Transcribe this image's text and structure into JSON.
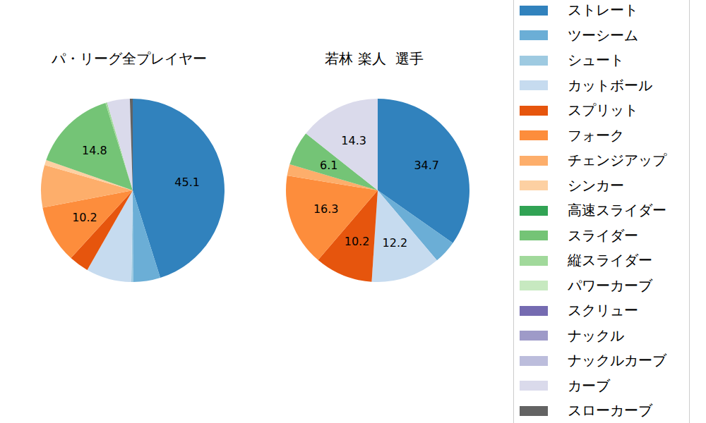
{
  "chart_data": {
    "type": "pie",
    "legend": "upper right",
    "categories": [
      "ストレート",
      "ツーシーム",
      "シュート",
      "カットボール",
      "スプリット",
      "フォーク",
      "チェンジアップ",
      "シンカー",
      "高速スライダー",
      "スライダー",
      "縦スライダー",
      "パワーカーブ",
      "スクリュー",
      "ナックル",
      "ナックルカーブ",
      "カーブ",
      "スローカーブ"
    ],
    "colors": [
      "#3182bd",
      "#6baed6",
      "#9ecae1",
      "#c6dbef",
      "#e6550d",
      "#fd8d3c",
      "#fdae6b",
      "#fdd0a2",
      "#31a354",
      "#74c476",
      "#a1d99b",
      "#c7e9c0",
      "#756bb1",
      "#9e9ac8",
      "#bcbddc",
      "#dadaeb",
      "#636363"
    ],
    "series": [
      {
        "name": "パ・リーグ全プレイヤー",
        "values": [
          45.1,
          4.8,
          0.3,
          8.0,
          3.5,
          10.2,
          7.5,
          0.9,
          0,
          14.8,
          0.3,
          0,
          0,
          0,
          0,
          4.0,
          0.5
        ],
        "value_labels": [
          "45.1",
          null,
          null,
          null,
          null,
          "10.2",
          null,
          null,
          null,
          "14.8",
          null,
          null,
          null,
          null,
          null,
          null,
          null
        ]
      },
      {
        "name": "若林 楽人  選手",
        "values": [
          34.7,
          4.1,
          0,
          12.2,
          10.2,
          16.3,
          2.0,
          0,
          0,
          6.1,
          0,
          0,
          0,
          0,
          0,
          14.3,
          0
        ],
        "value_labels": [
          "34.7",
          null,
          null,
          "12.2",
          "10.2",
          "16.3",
          null,
          null,
          null,
          "6.1",
          null,
          null,
          null,
          null,
          null,
          "14.3",
          null
        ]
      }
    ]
  }
}
